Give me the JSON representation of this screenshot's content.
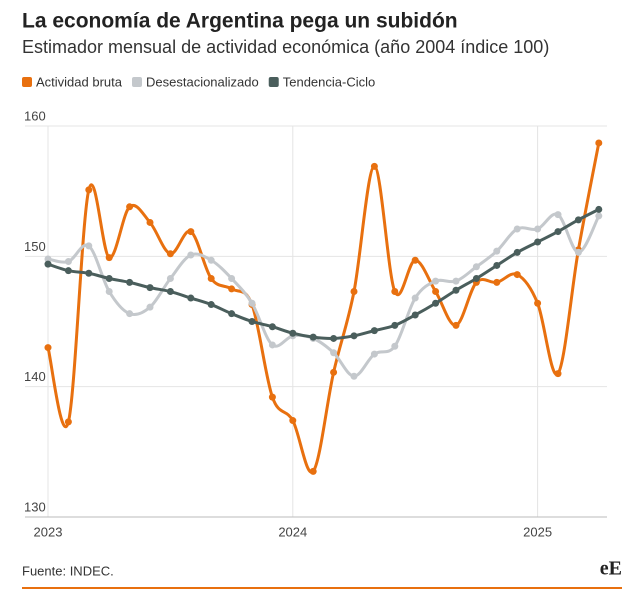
{
  "chart_data": {
    "type": "line",
    "title": "La economía de Argentina pega un subidón",
    "subtitle": "Estimador mensual de actividad económica (año 2004 índice 100)",
    "source": "Fuente: INDEC.",
    "logo": "eE",
    "categories": [
      "2023",
      null,
      null,
      null,
      null,
      null,
      null,
      null,
      null,
      null,
      null,
      null,
      "2024",
      null,
      null,
      null,
      null,
      null,
      null,
      null,
      null,
      null,
      null,
      null,
      "2025",
      null,
      null,
      null
    ],
    "series": [
      {
        "name": "Actividad bruta",
        "color": "#e8700f",
        "values": [
          143.0,
          137.3,
          155.1,
          149.9,
          153.8,
          152.6,
          150.2,
          151.9,
          148.3,
          147.5,
          146.3,
          139.2,
          137.4,
          133.5,
          141.1,
          147.3,
          156.9,
          147.3,
          149.7,
          147.3,
          144.7,
          148.0,
          148.0,
          148.6,
          146.4,
          141.0,
          150.5,
          158.7
        ]
      },
      {
        "name": "Desestacionalizado",
        "color": "#c4c8cc",
        "values": [
          149.8,
          149.6,
          150.8,
          147.3,
          145.6,
          146.1,
          148.3,
          150.1,
          149.7,
          148.3,
          146.4,
          143.2,
          143.9,
          143.7,
          142.6,
          140.8,
          142.5,
          143.1,
          146.8,
          148.1,
          148.1,
          149.2,
          150.4,
          152.1,
          152.1,
          153.2,
          150.3,
          153.1
        ]
      },
      {
        "name": "Tendencia-Ciclo",
        "color": "#4a5e5c",
        "values": [
          149.4,
          148.9,
          148.7,
          148.3,
          148.0,
          147.6,
          147.3,
          146.8,
          146.3,
          145.6,
          145.0,
          144.6,
          144.1,
          143.8,
          143.7,
          143.9,
          144.3,
          144.7,
          145.5,
          146.4,
          147.4,
          148.3,
          149.3,
          150.3,
          151.1,
          151.9,
          152.8,
          153.6
        ]
      }
    ],
    "ylim": [
      130,
      160
    ],
    "yticks": [
      130,
      140,
      150,
      160
    ],
    "grid": true
  }
}
